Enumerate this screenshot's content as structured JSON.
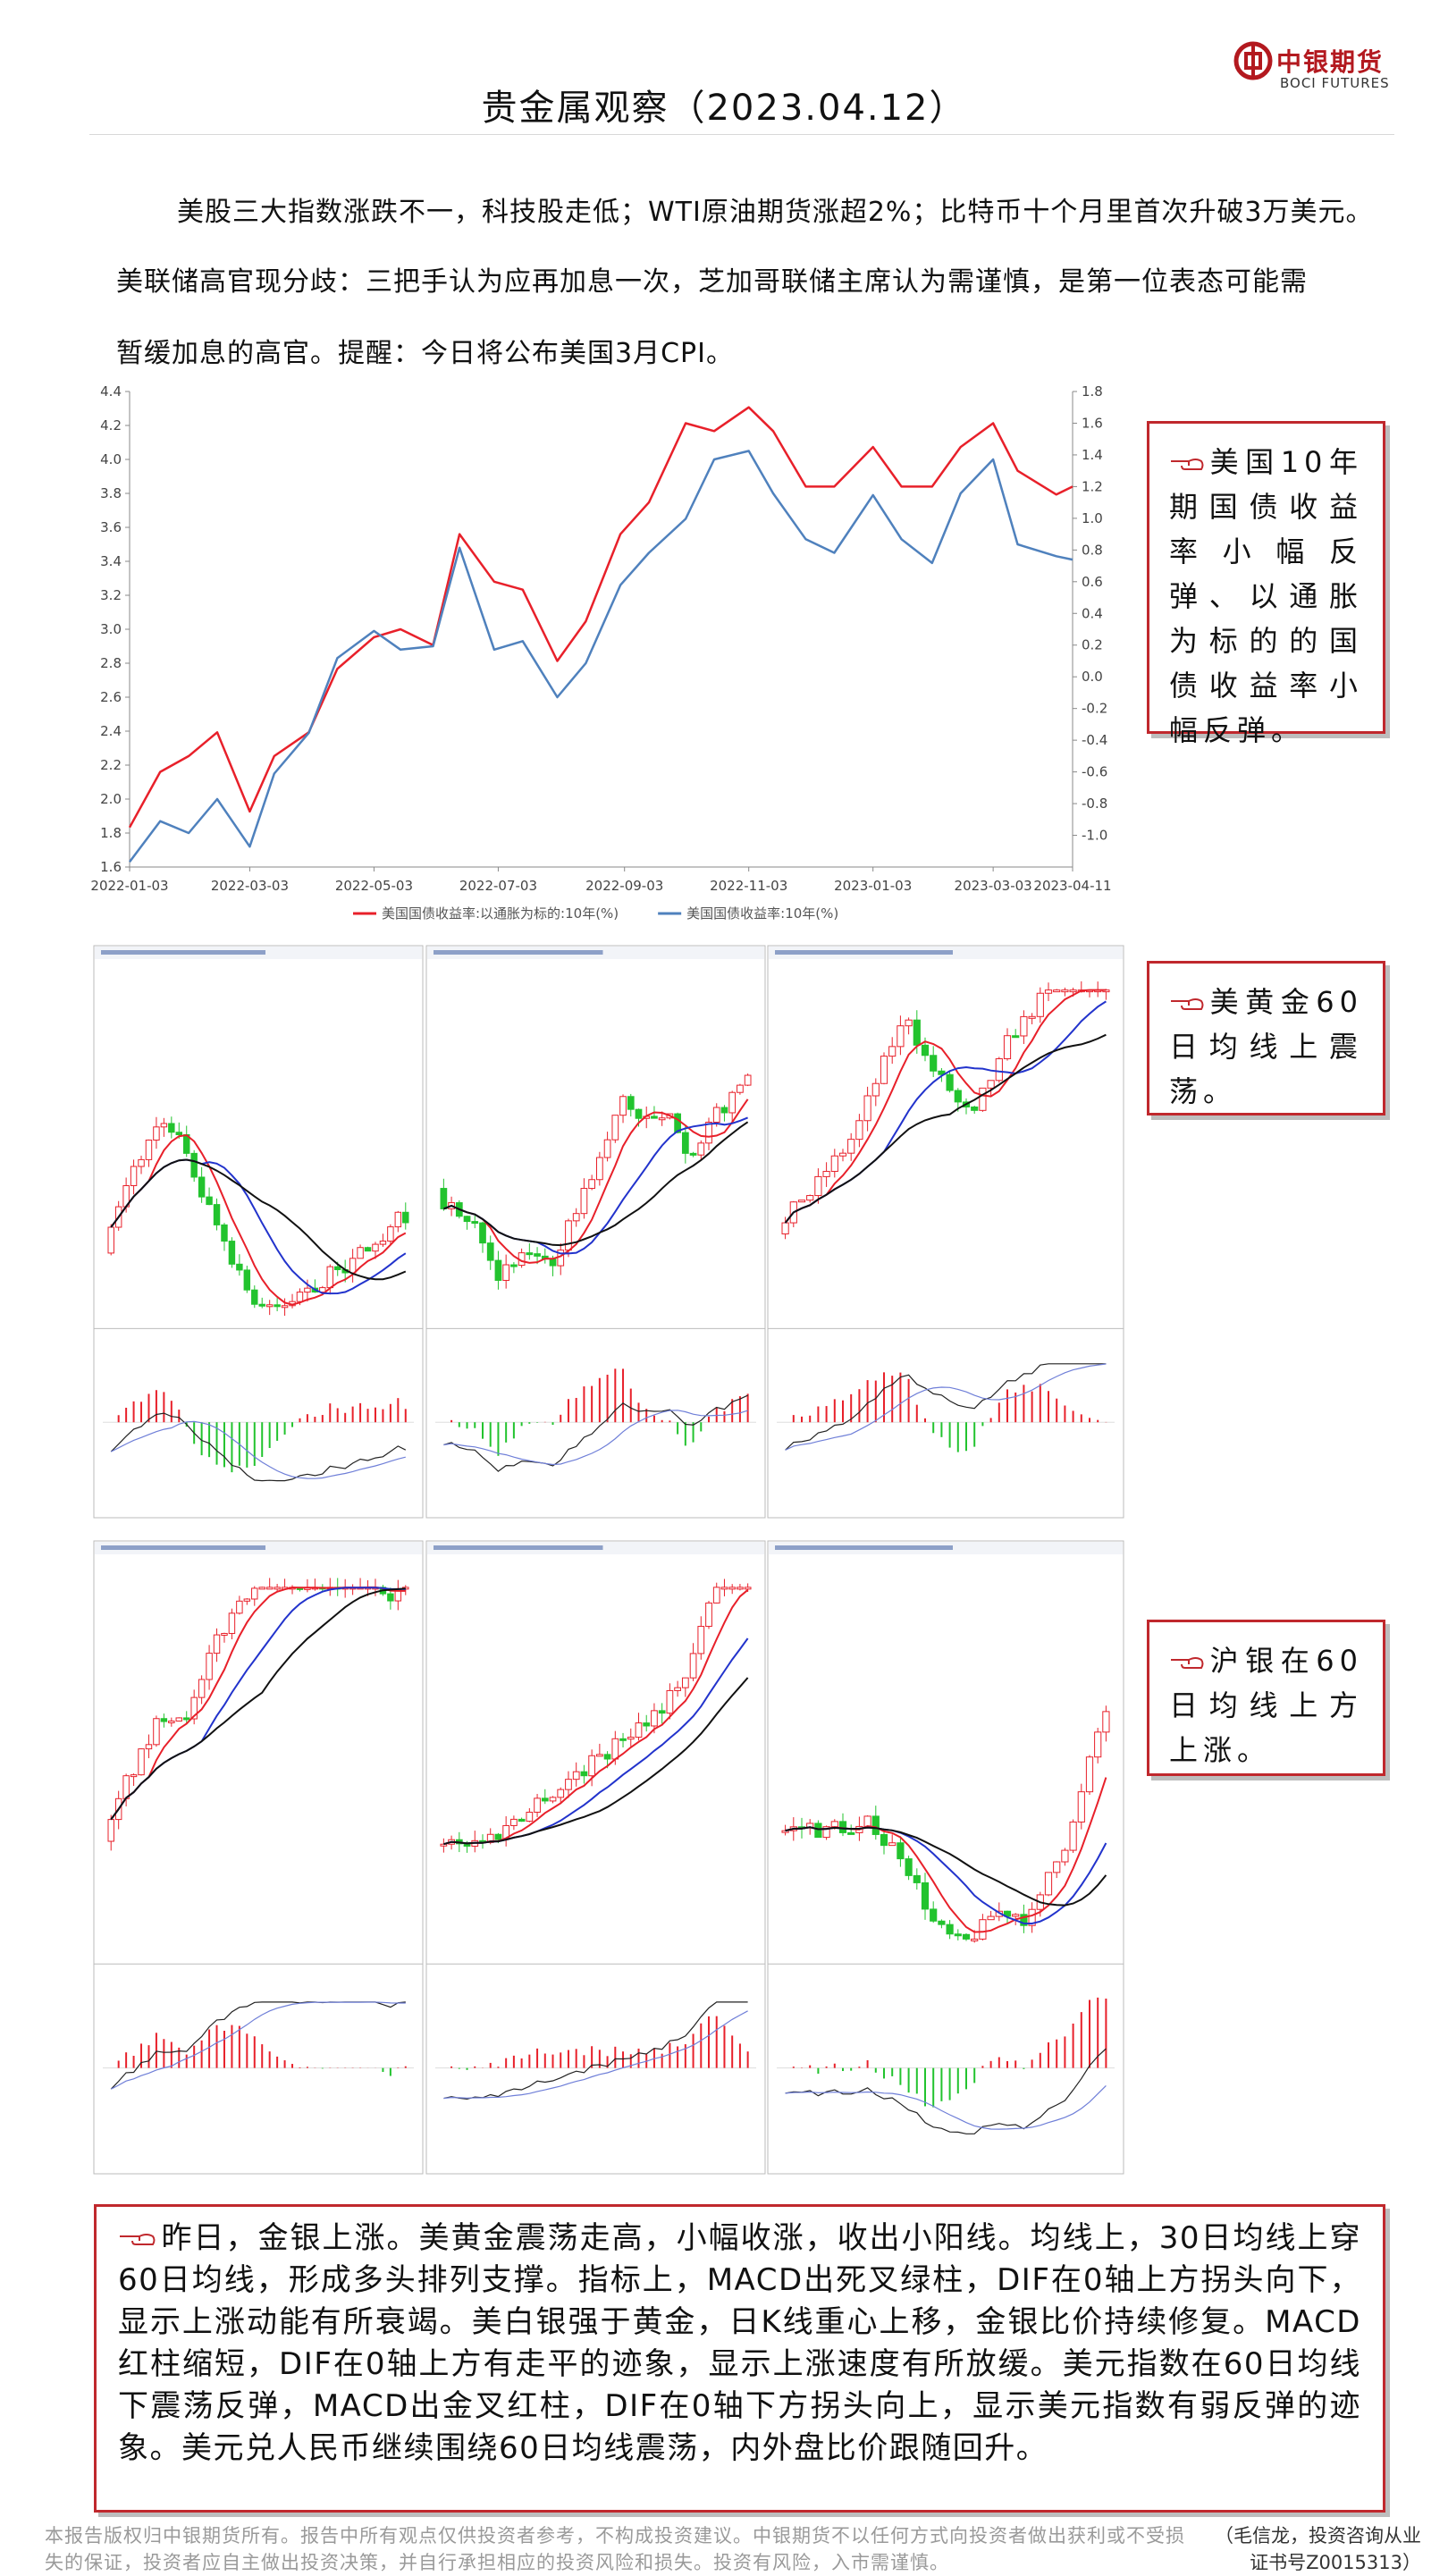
{
  "header": {
    "logo_cn": "中银期货",
    "logo_en": "BOCI FUTURES",
    "title": "贵金属观察（2023.04.12）"
  },
  "intro": {
    "lines": [
      "美股三大指数涨跌不一，科技股走低；WTI原油期货涨超2%；比特币十个月里首次升破3万美元。",
      "美联储高官现分歧：三把手认为应再加息一次，芝加哥联储主席认为需谨慎，是第一位表态可能需",
      "暂缓加息的高官。提醒：今日将公布美国3月CPI。"
    ]
  },
  "chart_data": {
    "type": "line",
    "x": [
      "2022-01-03",
      "2022-01-18",
      "2022-02-01",
      "2022-02-15",
      "2022-03-03",
      "2022-03-15",
      "2022-04-01",
      "2022-04-15",
      "2022-05-03",
      "2022-05-16",
      "2022-06-01",
      "2022-06-14",
      "2022-07-01",
      "2022-07-15",
      "2022-08-01",
      "2022-08-15",
      "2022-09-01",
      "2022-09-15",
      "2022-10-03",
      "2022-10-17",
      "2022-11-03",
      "2022-11-15",
      "2022-12-01",
      "2022-12-15",
      "2023-01-03",
      "2023-01-17",
      "2023-02-01",
      "2023-02-15",
      "2023-03-03",
      "2023-03-15",
      "2023-04-03",
      "2023-04-11"
    ],
    "xlim": [
      "2022-01-03",
      "2023-04-11"
    ],
    "xticks": [
      "2022-01-03",
      "2022-03-03",
      "2022-05-03",
      "2022-07-03",
      "2022-09-03",
      "2022-11-03",
      "2023-01-03",
      "2023-03-03",
      "2023-04-11"
    ],
    "series": [
      {
        "name": "美国国债收益率:以通胀为标的:10年(%)",
        "color": "#e8202a",
        "axis": "y2",
        "values": [
          -0.95,
          -0.6,
          -0.5,
          -0.35,
          -0.85,
          -0.5,
          -0.35,
          0.05,
          0.25,
          0.3,
          0.2,
          0.9,
          0.6,
          0.55,
          0.1,
          0.35,
          0.9,
          1.1,
          1.6,
          1.55,
          1.7,
          1.55,
          1.2,
          1.2,
          1.45,
          1.2,
          1.2,
          1.45,
          1.6,
          1.3,
          1.15,
          1.2
        ]
      },
      {
        "name": "美国国债收益率:10年(%)",
        "color": "#4f81bd",
        "values": [
          1.63,
          1.87,
          1.8,
          2.0,
          1.72,
          2.15,
          2.39,
          2.83,
          2.99,
          2.88,
          2.9,
          3.48,
          2.88,
          2.93,
          2.6,
          2.8,
          3.26,
          3.45,
          3.65,
          4.0,
          4.05,
          3.8,
          3.53,
          3.45,
          3.79,
          3.53,
          3.39,
          3.8,
          4.0,
          3.5,
          3.43,
          3.41
        ]
      }
    ],
    "ylim": [
      1.6,
      4.4
    ],
    "yticks": [
      1.6,
      1.8,
      {
        "value": 2.0,
        "label": "2.0"
      },
      2.2,
      2.4,
      2.6,
      2.8,
      {
        "value": 3.0,
        "label": "3.0"
      },
      3.2,
      3.4,
      3.6,
      3.8,
      {
        "value": 4.0,
        "label": "4.0"
      },
      4.2,
      4.4
    ],
    "y2lim": [
      -1.2,
      1.8
    ],
    "y2ticks": [
      {
        "value": -1.0,
        "label": "-1.0"
      },
      -0.8,
      -0.6,
      -0.4,
      -0.2,
      {
        "value": 0.0,
        "label": "0.0"
      },
      0.2,
      0.4,
      0.6,
      0.8,
      {
        "value": 1.0,
        "label": "1.0"
      },
      1.2,
      1.4,
      1.6,
      1.8
    ],
    "grid": false
  },
  "callouts": [
    "美国10年期国债收益率小幅反弹、以通胀为标的的国债收益率小幅反弹。",
    "美黄金60日均线上震荡。",
    "沪银在60日均线上方上涨。"
  ],
  "summary": "昨日，金银上涨。美黄金震荡走高，小幅收涨，收出小阳线。均线上，30日均线上穿60日均线，形成多头排列支撑。指标上，MACD出死叉绿柱，DIF在0轴上方拐头向下，显示上涨动能有所衰竭。美白银强于黄金，日K线重心上移，金银比价持续修复。MACD红柱缩短，DIF在0轴上方有走平的迹象，显示上涨速度有所放缓。美元指数在60日均线下震荡反弹，MACD出金叉红柱，DIF在0轴下方拐头向上，显示美元指数有弱反弹的迹象。美元兑人民币继续围绕60日均线震荡，内外盘比价跟随回升。",
  "footer": {
    "disclaimer": "本报告版权归中银期货所有。报告中所有观点仅供投资者参考，不构成投资建议。中银期货不以任何方式向投资者做出获利或不受损失的保证，投资者应自主做出投资决策，并自行承担相应的投资风险和损失。投资有风险，入市需谨慎。",
    "author": "（毛信龙，投资咨询从业证书号Z0015313）"
  }
}
